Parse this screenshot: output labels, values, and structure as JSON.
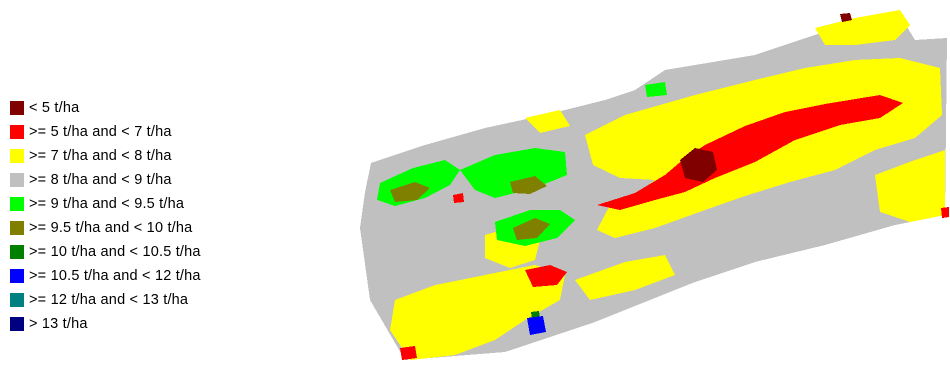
{
  "legend": {
    "items": [
      {
        "label": "< 5 t/ha",
        "color": "#800000"
      },
      {
        "label": ">= 5 t/ha and < 7 t/ha",
        "color": "#ff0000"
      },
      {
        "label": ">= 7 t/ha and < 8 t/ha",
        "color": "#ffff00"
      },
      {
        "label": ">= 8 t/ha and < 9 t/ha",
        "color": "#c0c0c0"
      },
      {
        "label": ">= 9 t/ha and < 9.5 t/ha",
        "color": "#00ff00"
      },
      {
        "label": ">= 9.5 t/ha and < 10 t/ha",
        "color": "#808000"
      },
      {
        "label": ">= 10 t/ha and < 10.5 t/ha",
        "color": "#008000"
      },
      {
        "label": ">= 10.5 t/ha and < 12 t/ha",
        "color": "#0000ff"
      },
      {
        "label": ">= 12 t/ha and < 13 t/ha",
        "color": "#008080"
      },
      {
        "label": "> 13 t/ha",
        "color": "#000080"
      }
    ]
  }
}
